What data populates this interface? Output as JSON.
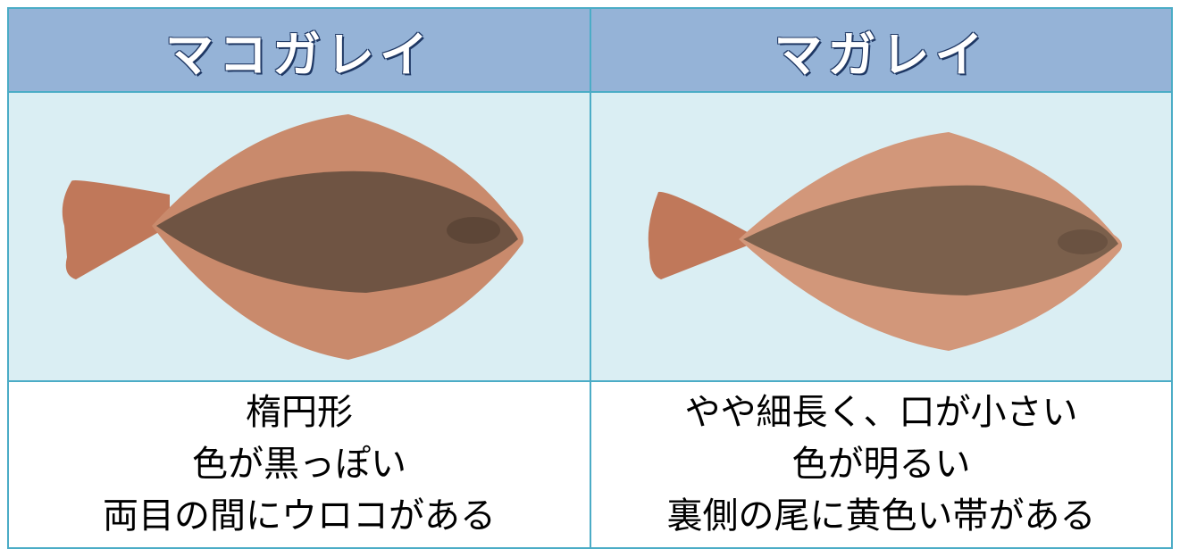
{
  "table": {
    "headers": [
      "マコガレイ",
      "マガレイ"
    ],
    "descriptions": [
      [
        "楕円形",
        "色が黒っぽい",
        "両目の間にウロコがある"
      ],
      [
        "やや細長く、口が小さい",
        "色が明るい",
        "裏側の尾に黄色い帯がある"
      ]
    ]
  }
}
